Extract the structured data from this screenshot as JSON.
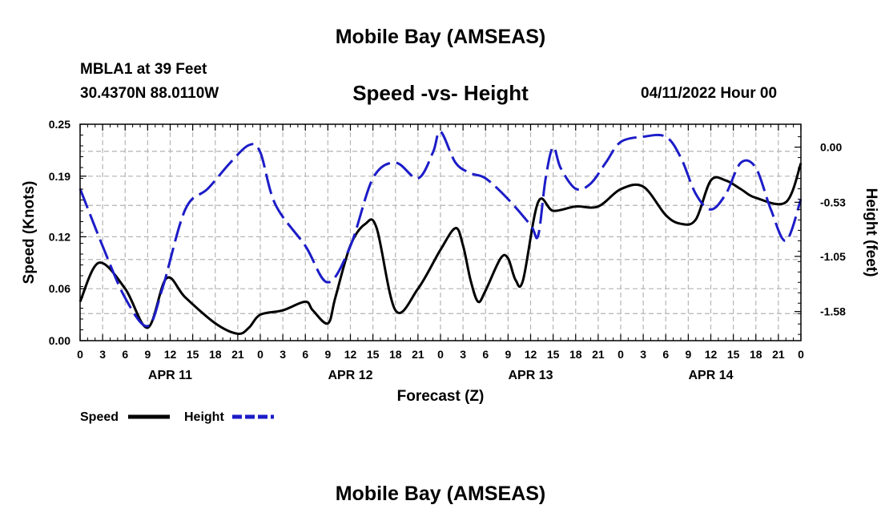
{
  "page": {
    "title": "Mobile Bay (AMSEAS)",
    "station": "MBLA1 at 39 Feet",
    "coords": "30.4370N  88.0110W",
    "forecast_time": "04/11/2022 Hour 00",
    "footer_title": "Mobile Bay (AMSEAS)"
  },
  "colors": {
    "speed": "#000000",
    "height": "#1c1cc8",
    "grid": "#b4b4b4"
  },
  "chart_data": {
    "type": "line",
    "title": "Speed -vs- Height",
    "xlabel": "Forecast (Z)",
    "ylabel": "Speed (Knots)",
    "y2label": "Height (feet)",
    "xlim": [
      0,
      96
    ],
    "ylim": [
      0,
      0.25
    ],
    "y2lim": [
      -1.86,
      0.22
    ],
    "x_tick_hours": [
      0,
      3,
      6,
      9,
      12,
      15,
      18,
      21,
      24,
      27,
      30,
      33,
      36,
      39,
      42,
      45,
      48,
      51,
      54,
      57,
      60,
      63,
      66,
      69,
      72,
      75,
      78,
      81,
      84,
      87,
      90,
      93,
      96
    ],
    "x_tick_labels": [
      "0",
      "3",
      "6",
      "9",
      "12",
      "15",
      "18",
      "21",
      "0",
      "3",
      "6",
      "9",
      "12",
      "15",
      "18",
      "21",
      "0",
      "3",
      "6",
      "9",
      "12",
      "15",
      "18",
      "21",
      "0",
      "3",
      "6",
      "9",
      "12",
      "15",
      "18",
      "21",
      "0"
    ],
    "date_labels": [
      {
        "hour": 12,
        "label": "APR 11"
      },
      {
        "hour": 36,
        "label": "APR 12"
      },
      {
        "hour": 60,
        "label": "APR 13"
      },
      {
        "hour": 84,
        "label": "APR 14"
      }
    ],
    "y_ticks": [
      0.0,
      0.06,
      0.12,
      0.19,
      0.25
    ],
    "y_tick_labels": [
      "0.00",
      "0.06",
      "0.12",
      "0.19",
      "0.25"
    ],
    "y2_ticks": [
      0.0,
      -0.53,
      -1.05,
      -1.58
    ],
    "y2_tick_labels": [
      "0.00",
      "-0.53",
      "-1.05",
      "-1.58"
    ],
    "grid": true,
    "legend_position": "bottom-left",
    "series": [
      {
        "name": "Speed",
        "axis": "left",
        "style": "solid",
        "x": [
          0,
          2.5,
          6,
          9,
          11.5,
          14,
          18,
          21,
          22.5,
          24,
          27,
          30,
          31,
          33,
          34,
          36,
          38,
          39.5,
          42,
          45,
          48,
          50,
          51,
          52,
          53,
          54,
          56,
          57,
          58,
          59,
          61,
          63,
          66,
          69,
          72,
          75,
          78,
          80,
          82,
          84,
          86,
          88,
          90,
          94,
          96
        ],
        "values": [
          0.045,
          0.09,
          0.06,
          0.015,
          0.072,
          0.05,
          0.02,
          0.008,
          0.015,
          0.03,
          0.035,
          0.045,
          0.035,
          0.02,
          0.05,
          0.11,
          0.135,
          0.13,
          0.035,
          0.06,
          0.105,
          0.13,
          0.11,
          0.07,
          0.045,
          0.058,
          0.095,
          0.095,
          0.07,
          0.07,
          0.16,
          0.15,
          0.155,
          0.155,
          0.175,
          0.178,
          0.145,
          0.135,
          0.14,
          0.185,
          0.185,
          0.175,
          0.165,
          0.16,
          0.205
        ]
      },
      {
        "name": "Height",
        "axis": "right",
        "style": "dashed",
        "x": [
          0,
          3,
          6,
          9,
          11,
          14,
          17,
          20,
          22.5,
          24,
          26,
          30,
          33,
          36,
          39,
          42,
          45,
          47,
          48,
          50,
          52,
          54,
          57,
          60,
          61,
          62,
          63,
          64,
          66,
          68,
          70,
          72,
          75,
          78,
          80,
          82,
          84,
          86,
          88,
          90,
          92,
          94,
          96
        ],
        "values": [
          -0.4,
          -0.95,
          -1.45,
          -1.72,
          -1.35,
          -0.6,
          -0.4,
          -0.15,
          0.02,
          -0.05,
          -0.55,
          -0.95,
          -1.3,
          -0.95,
          -0.3,
          -0.15,
          -0.3,
          -0.05,
          0.15,
          -0.15,
          -0.25,
          -0.3,
          -0.5,
          -0.75,
          -0.85,
          -0.3,
          0.0,
          -0.2,
          -0.4,
          -0.35,
          -0.15,
          0.05,
          0.1,
          0.1,
          -0.1,
          -0.45,
          -0.6,
          -0.45,
          -0.15,
          -0.2,
          -0.6,
          -0.9,
          -0.5
        ]
      }
    ]
  }
}
